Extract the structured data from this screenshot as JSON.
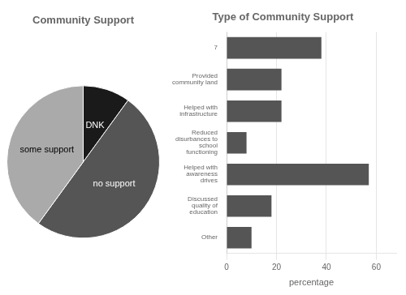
{
  "chart_data": [
    {
      "type": "pie",
      "title": "Community Support",
      "categories": [
        "DNK",
        "no support",
        "some support"
      ],
      "values": [
        10,
        50,
        40
      ],
      "colors": [
        "#1a1a1a",
        "#555555",
        "#aaaaaa"
      ]
    },
    {
      "type": "bar",
      "orientation": "horizontal",
      "title": "Type of Community Support",
      "categories": [
        "7",
        "Provided\ncommunity land",
        "Helped with\ninfrastructure",
        "Reduced\ndisurbances to\nschool\nfunctioning",
        "Helped with\nawareness\ndrives",
        "Discussed\nquality of\neducation",
        "Other"
      ],
      "values": [
        38,
        22,
        22,
        8,
        57,
        18,
        10
      ],
      "color": "#555555",
      "xlabel": "percentage",
      "xlim": [
        0,
        68
      ],
      "xticks": [
        0,
        20,
        40,
        60
      ],
      "grid": true
    }
  ]
}
